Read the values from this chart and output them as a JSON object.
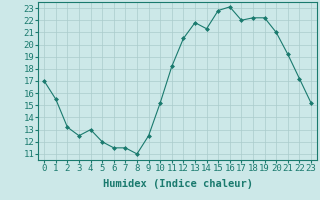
{
  "x": [
    0,
    1,
    2,
    3,
    4,
    5,
    6,
    7,
    8,
    9,
    10,
    11,
    12,
    13,
    14,
    15,
    16,
    17,
    18,
    19,
    20,
    21,
    22,
    23
  ],
  "y": [
    17,
    15.5,
    13.2,
    12.5,
    13,
    12,
    11.5,
    11.5,
    11,
    12.5,
    15.2,
    18.2,
    20.5,
    21.8,
    21.3,
    22.8,
    23.1,
    22,
    22.2,
    22.2,
    21,
    19.2,
    17.2,
    15.2
  ],
  "line_color": "#1a7a6e",
  "marker": "D",
  "marker_size": 2,
  "bg_color": "#cce8e8",
  "grid_color": "#aacccc",
  "xlabel": "Humidex (Indice chaleur)",
  "xlim": [
    -0.5,
    23.5
  ],
  "ylim": [
    10.5,
    23.5
  ],
  "yticks": [
    11,
    12,
    13,
    14,
    15,
    16,
    17,
    18,
    19,
    20,
    21,
    22,
    23
  ],
  "xticks": [
    0,
    1,
    2,
    3,
    4,
    5,
    6,
    7,
    8,
    9,
    10,
    11,
    12,
    13,
    14,
    15,
    16,
    17,
    18,
    19,
    20,
    21,
    22,
    23
  ],
  "xlabel_fontsize": 7.5,
  "tick_fontsize": 6.5
}
